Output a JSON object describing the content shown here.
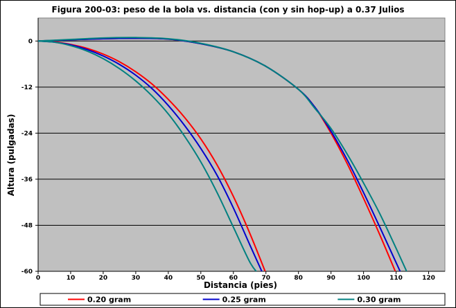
{
  "chart_data": {
    "type": "line",
    "title": "Figura 200-03: peso de la bola vs. distancia (con y sin hop-up) a 0.37 Julios",
    "xlabel": "Distancia (pies)",
    "ylabel": "Altura (pulgadas)",
    "xlim": [
      0,
      125
    ],
    "ylim": [
      -60,
      6
    ],
    "xticks": [
      0,
      10,
      20,
      30,
      40,
      50,
      60,
      70,
      80,
      90,
      100,
      110,
      120
    ],
    "yticks": [
      0,
      -12,
      -24,
      -36,
      -48,
      -60
    ],
    "xtick_labels": [
      "0",
      "10",
      "20",
      "30",
      "40",
      "50",
      "60",
      "70",
      "80",
      "90",
      "100",
      "110",
      "120"
    ],
    "ytick_labels": [
      "0",
      "-12",
      "-24",
      "-36",
      "-48",
      "-60"
    ],
    "grid": "horizontal",
    "background": "#c0c0c0",
    "legend_position": "bottom",
    "series": [
      {
        "name": "0.20 gram",
        "color": "#ff0000",
        "curves": [
          {
            "x": [
              0,
              5,
              10,
              15,
              20,
              25,
              30,
              35,
              40,
              45,
              50,
              55,
              60,
              65,
              70
            ],
            "y": [
              0,
              -0.2,
              -0.9,
              -1.9,
              -3.4,
              -5.4,
              -8.0,
              -11.2,
              -15.2,
              -19.9,
              -25.5,
              -32.3,
              -40.5,
              -50.0,
              -60.5
            ]
          },
          {
            "x": [
              0,
              10,
              20,
              30,
              40,
              50,
              60,
              70,
              80,
              85,
              90,
              95,
              100,
              105,
              110
            ],
            "y": [
              0,
              0.3,
              0.6,
              0.7,
              0.5,
              -0.7,
              -2.8,
              -6.6,
              -12.6,
              -17.2,
              -24.0,
              -32.0,
              -41.0,
              -50.5,
              -60.5
            ]
          }
        ]
      },
      {
        "name": "0.25 gram",
        "color": "#0000cc",
        "curves": [
          {
            "x": [
              0,
              5,
              10,
              15,
              20,
              25,
              30,
              35,
              40,
              45,
              50,
              55,
              60,
              65,
              69
            ],
            "y": [
              0,
              -0.3,
              -1.0,
              -2.2,
              -3.9,
              -6.1,
              -8.9,
              -12.4,
              -16.8,
              -22.0,
              -28.0,
              -35.0,
              -43.5,
              -53.0,
              -60.5
            ]
          },
          {
            "x": [
              0,
              10,
              20,
              30,
              40,
              50,
              60,
              70,
              80,
              85,
              90,
              95,
              100,
              105,
              111.5
            ],
            "y": [
              0,
              0.3,
              0.6,
              0.7,
              0.5,
              -0.7,
              -2.8,
              -6.6,
              -12.6,
              -17.2,
              -23.5,
              -31.0,
              -39.5,
              -48.5,
              -60.5
            ]
          }
        ]
      },
      {
        "name": "0.30 gram",
        "color": "#008080",
        "curves": [
          {
            "x": [
              0,
              5,
              10,
              15,
              20,
              25,
              30,
              35,
              40,
              45,
              50,
              55,
              60,
              65,
              67.5
            ],
            "y": [
              0,
              -0.3,
              -1.2,
              -2.6,
              -4.6,
              -7.2,
              -10.4,
              -14.3,
              -19.0,
              -24.8,
              -31.5,
              -39.5,
              -48.5,
              -57.5,
              -60.5
            ]
          },
          {
            "x": [
              0,
              10,
              20,
              30,
              40,
              50,
              60,
              70,
              80,
              85,
              90,
              95,
              100,
              105,
              110,
              113.5
            ],
            "y": [
              0,
              0.4,
              0.8,
              0.9,
              0.6,
              -0.6,
              -2.8,
              -6.6,
              -12.6,
              -17.5,
              -22.8,
              -29.5,
              -37.0,
              -45.0,
              -54.0,
              -60.5
            ]
          }
        ]
      }
    ]
  }
}
